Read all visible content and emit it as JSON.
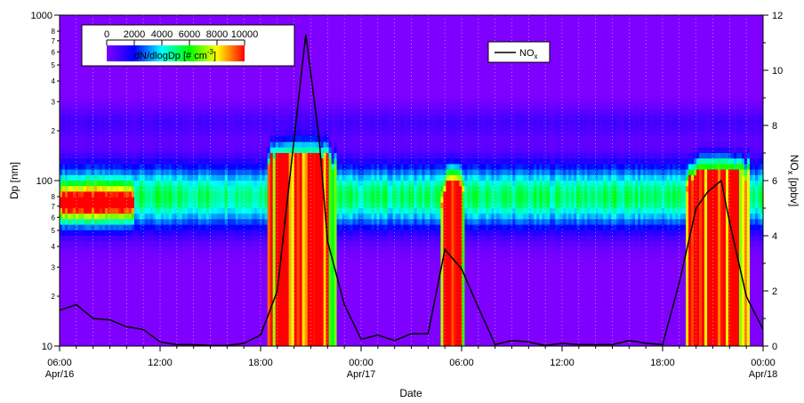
{
  "chart_data": {
    "type": "heatmap",
    "xlabel": "Date",
    "x_ticks": [
      {
        "time": "06:00",
        "date": "Apr/16",
        "hours": 0
      },
      {
        "time": "12:00",
        "date": "",
        "hours": 6
      },
      {
        "time": "18:00",
        "date": "",
        "hours": 12
      },
      {
        "time": "00:00",
        "date": "Apr/17",
        "hours": 18
      },
      {
        "time": "06:00",
        "date": "",
        "hours": 24
      },
      {
        "time": "12:00",
        "date": "",
        "hours": 30
      },
      {
        "time": "18:00",
        "date": "",
        "hours": 36
      },
      {
        "time": "00:00",
        "date": "Apr/18",
        "hours": 42
      }
    ],
    "xlim_hours": [
      0,
      42
    ],
    "left_axis": {
      "label": "Dp [nm]",
      "scale": "log",
      "ylim": [
        10,
        1000
      ],
      "major_ticks": [
        {
          "value": 10,
          "label": "10"
        },
        {
          "value": 100,
          "label": "100"
        },
        {
          "value": 1000,
          "label": "1000"
        }
      ],
      "minor_tick_labels": [
        "2",
        "3",
        "4",
        "5",
        "6",
        "7",
        "8"
      ]
    },
    "right_axis": {
      "label_main": "NO",
      "label_sub": "x",
      "label_unit": " [ppbv]",
      "ylim": [
        0,
        12
      ],
      "ticks": [
        "0",
        "2",
        "4",
        "6",
        "8",
        "10",
        "12"
      ]
    },
    "colorbar": {
      "label_main": "dN/dlogDp [# cm",
      "label_sup": "-3",
      "label_end": "]",
      "tick_labels": [
        "0",
        "2000",
        "4000",
        "6000",
        "8000",
        "10000"
      ],
      "range": [
        0,
        10000
      ],
      "colors": [
        "#8000ff",
        "#0000ff",
        "#00ffff",
        "#00ff00",
        "#ffff00",
        "#ff0000"
      ]
    },
    "series": [
      {
        "name_main": "NO",
        "name_sub": "x",
        "color": "#000000",
        "hours": [
          0,
          1,
          2,
          3,
          4,
          5,
          6,
          7,
          8,
          9,
          10,
          11,
          12,
          13,
          14,
          14.7,
          15.5,
          16,
          17,
          18,
          19,
          20,
          21,
          22,
          23,
          24,
          25,
          26,
          27,
          28,
          29,
          30,
          31,
          32,
          33,
          34,
          35,
          36,
          37,
          38,
          38.7,
          39.5,
          40,
          41,
          42
        ],
        "values": [
          1.3,
          1.5,
          1.0,
          0.95,
          0.7,
          0.6,
          0.15,
          0.05,
          0.05,
          0.02,
          0.02,
          0.1,
          0.4,
          2.0,
          7.5,
          11.3,
          7.5,
          3.8,
          1.5,
          0.25,
          0.4,
          0.2,
          0.45,
          0.45,
          3.5,
          2.8,
          1.4,
          0.05,
          0.2,
          0.15,
          0.02,
          0.1,
          0.05,
          0.05,
          0.05,
          0.2,
          0.1,
          0.05,
          2.3,
          5.0,
          5.6,
          6.0,
          4.5,
          1.8,
          0.6
        ]
      }
    ],
    "heatmap_summary": {
      "dense_mode_center_nm": 80,
      "high_concentration_episodes": [
        {
          "start_hours": 0,
          "end_hours": 4.5,
          "dp_range_nm": [
            50,
            100
          ]
        },
        {
          "start_hours": 12.4,
          "end_hours": 16.5,
          "dp_range_nm": [
            10,
            150
          ]
        },
        {
          "start_hours": 22.8,
          "end_hours": 24.2,
          "dp_range_nm": [
            10,
            100
          ]
        },
        {
          "start_hours": 37.4,
          "end_hours": 41.2,
          "dp_range_nm": [
            10,
            120
          ]
        }
      ]
    }
  }
}
